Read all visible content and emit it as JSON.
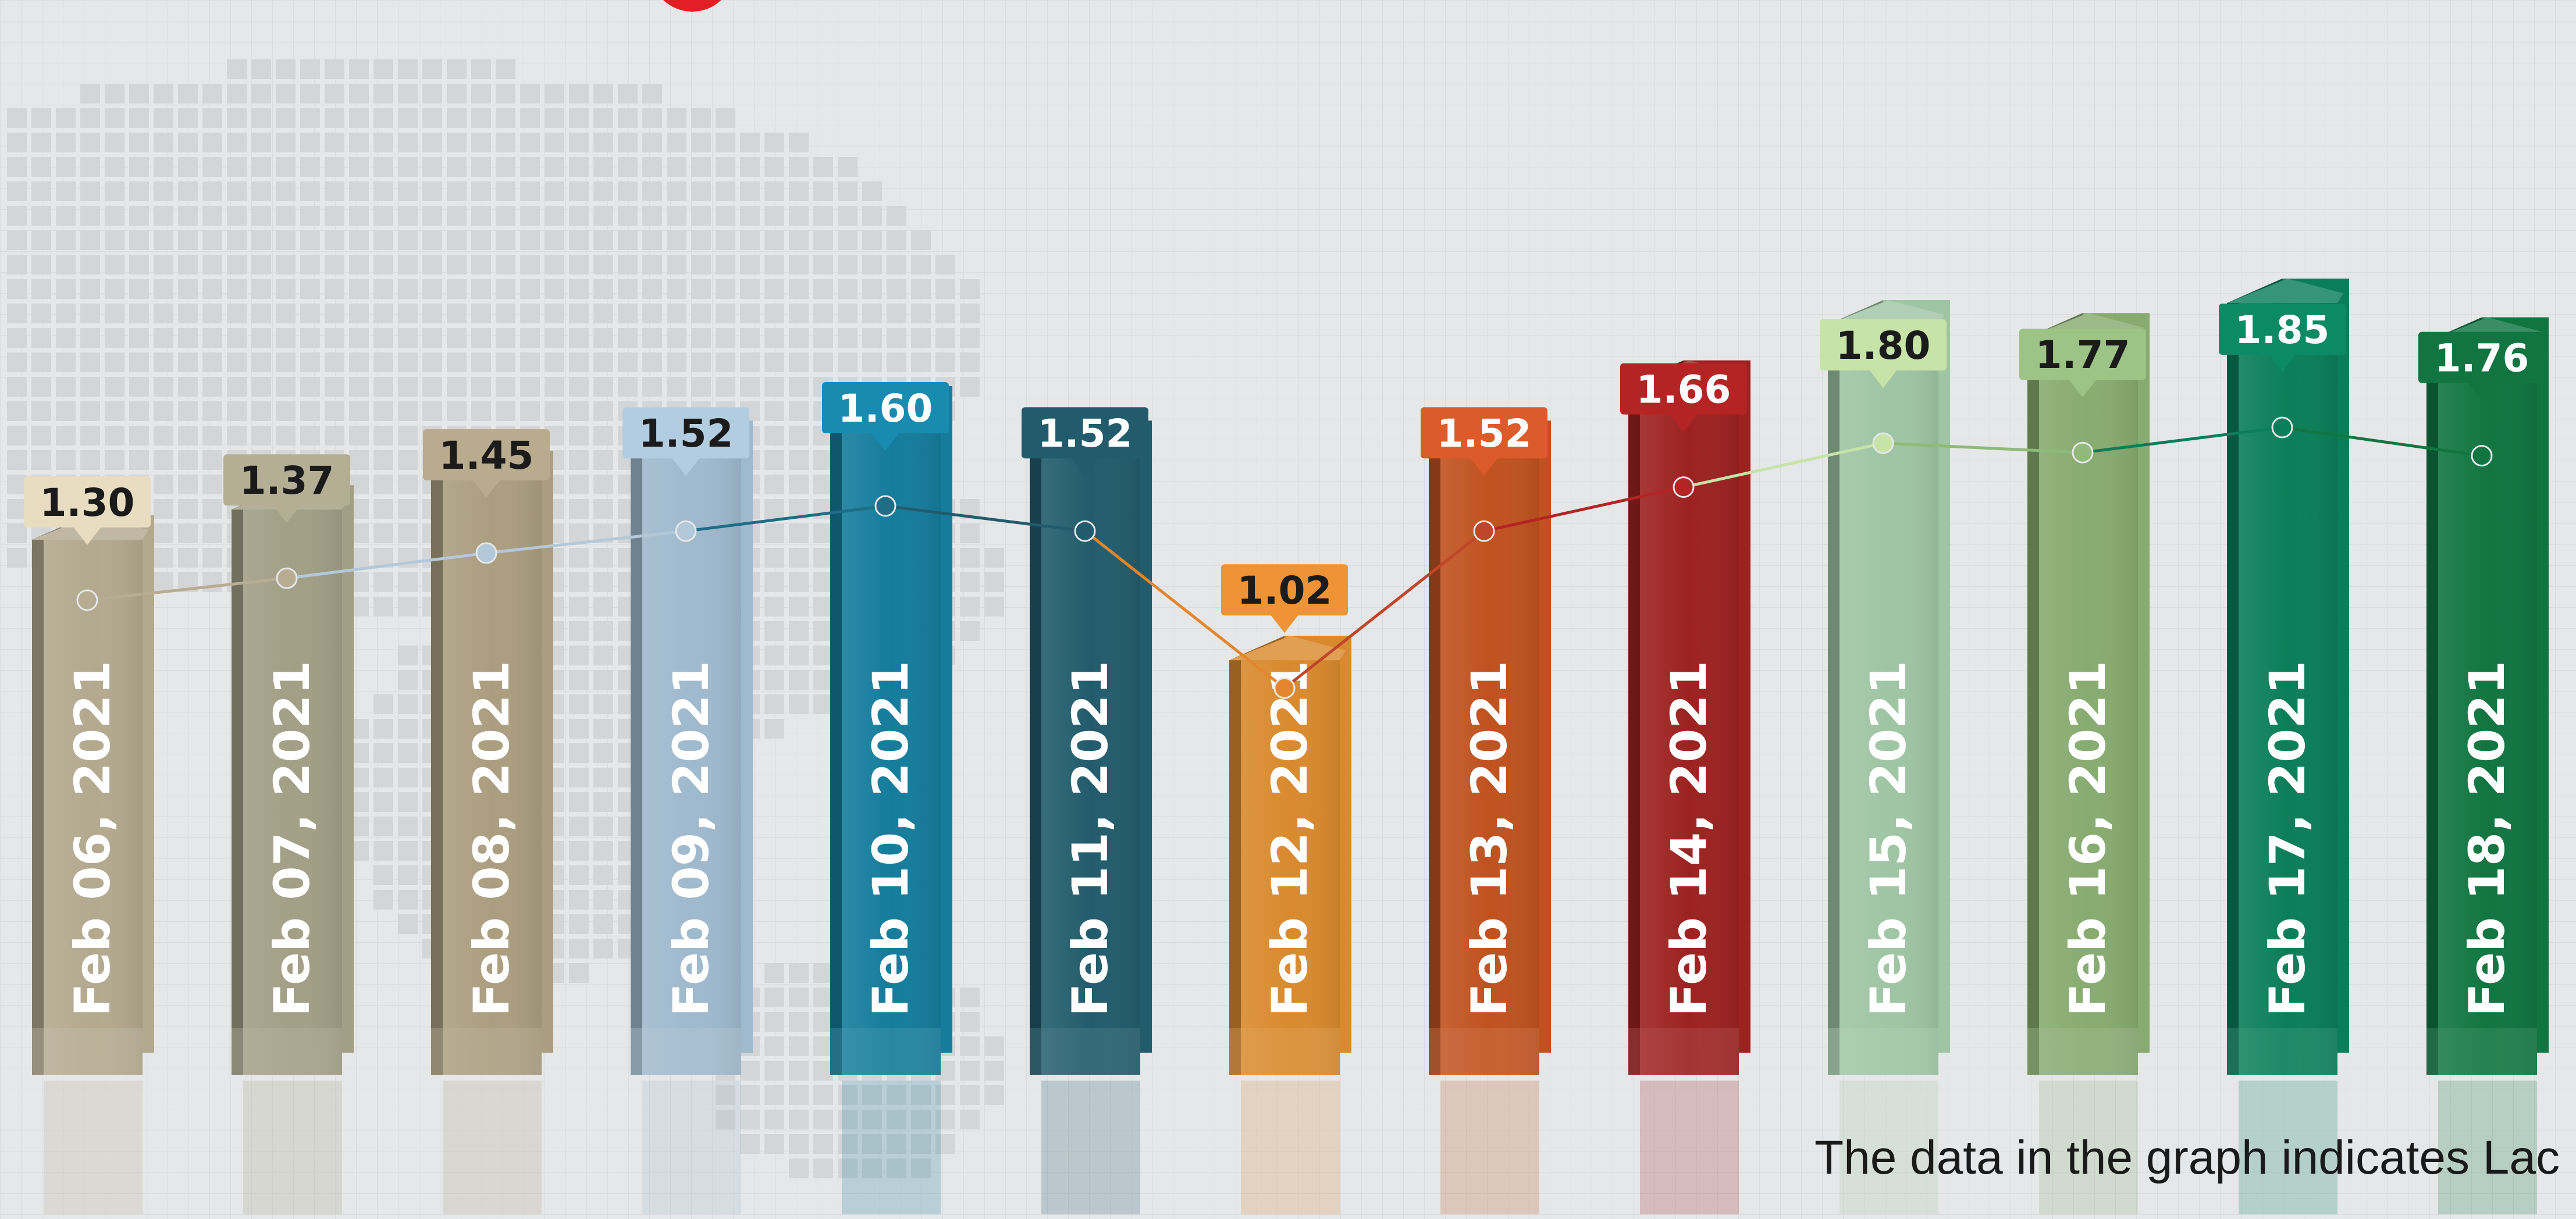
{
  "footnote": "The data in the graph indicates Lac",
  "colors": {
    "background": "#e6e7e8",
    "map": "#d3d5d7",
    "grid": "#dadcde",
    "accent_red": "#e31e24"
  },
  "chart_data": {
    "type": "bar",
    "title": "",
    "xlabel": "",
    "ylabel": "",
    "ylim": [
      0,
      2.1
    ],
    "grid": true,
    "legend": "none",
    "categories": [
      "Feb 06, 2021",
      "Feb 07, 2021",
      "Feb 08, 2021",
      "Feb 09, 2021",
      "Feb 10, 2021",
      "Feb 11, 2021",
      "Feb 12, 2021",
      "Feb 13, 2021",
      "Feb 14, 2021",
      "Feb 15, 2021",
      "Feb 16, 2021",
      "Feb 17, 2021",
      "Feb 18, 2021"
    ],
    "values": [
      1.3,
      1.37,
      1.45,
      1.52,
      1.6,
      1.52,
      1.02,
      1.52,
      1.66,
      1.8,
      1.77,
      1.85,
      1.76
    ],
    "value_labels": [
      "1.30",
      "1.37",
      "1.45",
      "1.52",
      "1.60",
      "1.52",
      "1.02",
      "1.52",
      "1.66",
      "1.80",
      "1.77",
      "1.85",
      "1.76"
    ],
    "bar_colors": [
      "#b3a98f",
      "#a29f86",
      "#ab9e80",
      "#9fb9cd",
      "#157c9c",
      "#225c6c",
      "#d98a2d",
      "#c0521f",
      "#9c2220",
      "#9fc5a4",
      "#87ab70",
      "#0a7e58",
      "#107541"
    ],
    "callout_colors": [
      "#e8dcc1",
      "#b3ae94",
      "#b9ab8e",
      "#b3cde0",
      "#1a8bb0",
      "#225c6c",
      "#ef9436",
      "#dd5a2a",
      "#b42424",
      "#c7e3a8",
      "#9dc386",
      "#0c8a63",
      "#107541"
    ],
    "callout_text_colors": [
      "#1b1b1b",
      "#1b1b1b",
      "#1b1b1b",
      "#1b1b1b",
      "#ffffff",
      "#ffffff",
      "#1b1b1b",
      "#ffffff",
      "#ffffff",
      "#1b1b1b",
      "#1b1b1b",
      "#ffffff",
      "#ffffff"
    ],
    "line_colors": [
      "#b8ad93",
      "#b8ad93",
      "#b3c9d9",
      "#b3c9d9",
      "#1d6e86",
      "#225c6c",
      "#e4862e",
      "#c0452a",
      "#b42424",
      "#c7e3a8",
      "#8fba78",
      "#0a7e58",
      "#107541"
    ]
  }
}
